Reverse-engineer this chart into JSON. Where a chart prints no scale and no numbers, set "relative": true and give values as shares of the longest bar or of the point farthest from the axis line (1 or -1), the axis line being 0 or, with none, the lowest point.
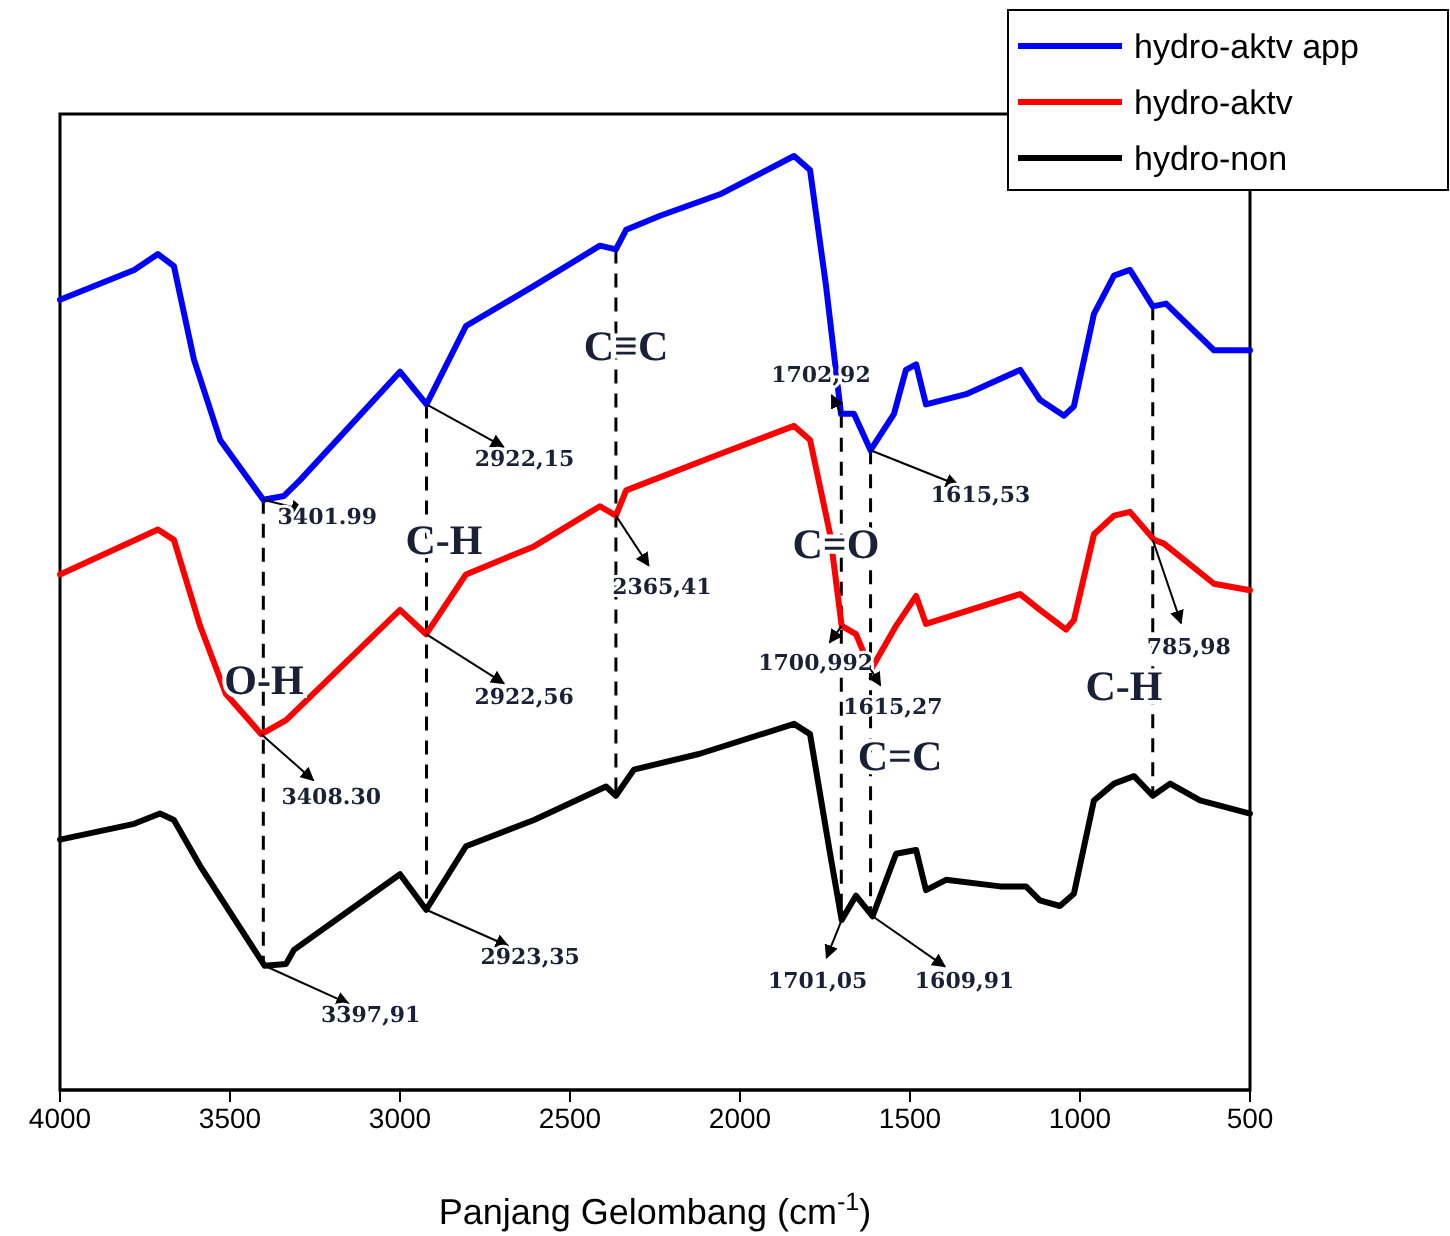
{
  "chart_data": {
    "type": "line",
    "relative": true,
    "xlabel": "Panjang Gelombang (cm$^{-1}$)",
    "xlim": [
      4000,
      500
    ],
    "xticks": [
      4000,
      3500,
      3000,
      2500,
      2000,
      1500,
      1000,
      500
    ],
    "legend": "top right",
    "line_style": "solid",
    "marker": "none",
    "series": [
      {
        "name": "hydro-aktv app",
        "color": "#0000ff",
        "x": [
          4000,
          3782,
          3712,
          3665,
          3606,
          3529,
          3402,
          3341,
          3294,
          3000,
          2922,
          2806,
          2606,
          2412,
          2365,
          2335,
          2235,
          2059,
          1841,
          1794,
          1747,
          1703,
          1665,
          1616,
          1547,
          1512,
          1482,
          1453,
          1335,
          1176,
          1118,
          1047,
          1018,
          959,
          900,
          853,
          786,
          747,
          606,
          500
        ],
        "values": [
          0.846,
          0.878,
          0.895,
          0.882,
          0.782,
          0.696,
          0.632,
          0.636,
          0.653,
          0.769,
          0.734,
          0.818,
          0.861,
          0.904,
          0.9,
          0.921,
          0.936,
          0.959,
          1.0,
          0.985,
          0.861,
          0.724,
          0.724,
          0.685,
          0.724,
          0.771,
          0.777,
          0.734,
          0.745,
          0.771,
          0.739,
          0.722,
          0.732,
          0.831,
          0.872,
          0.878,
          0.839,
          0.842,
          0.792,
          0.792
        ]
      },
      {
        "name": "hydro-aktv",
        "color": "#ff0000",
        "x": [
          4000,
          3712,
          3665,
          3588,
          3512,
          3408,
          3335,
          3000,
          2923,
          2806,
          2606,
          2412,
          2365,
          2335,
          2059,
          1841,
          1794,
          1735,
          1701,
          1659,
          1615,
          1541,
          1482,
          1453,
          1176,
          1118,
          1041,
          1018,
          959,
          900,
          853,
          782,
          753,
          606,
          500
        ],
        "values": [
          0.552,
          0.6,
          0.589,
          0.497,
          0.424,
          0.381,
          0.396,
          0.514,
          0.488,
          0.552,
          0.582,
          0.625,
          0.615,
          0.642,
          0.681,
          0.711,
          0.696,
          0.595,
          0.497,
          0.488,
          0.45,
          0.497,
          0.529,
          0.499,
          0.531,
          0.514,
          0.493,
          0.503,
          0.595,
          0.615,
          0.619,
          0.589,
          0.585,
          0.542,
          0.535
        ]
      },
      {
        "name": "hydro-non",
        "color": "#000000",
        "x": [
          4000,
          3782,
          3706,
          3665,
          3588,
          3398,
          3335,
          3312,
          3000,
          2923,
          2806,
          2606,
          2394,
          2365,
          2312,
          2118,
          1841,
          1794,
          1735,
          1701,
          1659,
          1610,
          1541,
          1482,
          1453,
          1394,
          1235,
          1159,
          1118,
          1059,
          1018,
          959,
          900,
          841,
          786,
          735,
          647,
          500
        ],
        "values": [
          0.268,
          0.285,
          0.296,
          0.289,
          0.24,
          0.133,
          0.135,
          0.15,
          0.231,
          0.193,
          0.261,
          0.289,
          0.325,
          0.315,
          0.343,
          0.36,
          0.392,
          0.381,
          0.253,
          0.182,
          0.208,
          0.186,
          0.253,
          0.257,
          0.214,
          0.225,
          0.218,
          0.218,
          0.203,
          0.197,
          0.21,
          0.31,
          0.328,
          0.336,
          0.315,
          0.328,
          0.31,
          0.296
        ]
      }
    ],
    "ref_lines": [
      {
        "axis": "x",
        "value": 3402,
        "line_style": "dashed"
      },
      {
        "axis": "x",
        "value": 2922,
        "line_style": "dashed"
      },
      {
        "axis": "x",
        "value": 2365,
        "line_style": "dashed"
      },
      {
        "axis": "x",
        "value": 1702,
        "line_style": "dashed"
      },
      {
        "axis": "x",
        "value": 1616,
        "line_style": "dashed"
      },
      {
        "axis": "x",
        "value": 786,
        "line_style": "dashed"
      }
    ],
    "annotations": [
      {
        "text": "3401.99",
        "x": 3402,
        "y": 0.632
      },
      {
        "text": "2922,15",
        "x": 2922,
        "y": 0.734
      },
      {
        "text": "2365,41",
        "x": 2365,
        "y": 0.615
      },
      {
        "text": "1702,92",
        "x": 1703,
        "y": 0.724
      },
      {
        "text": "1615,53",
        "x": 1616,
        "y": 0.685
      },
      {
        "text": "3408.30",
        "x": 3408,
        "y": 0.381
      },
      {
        "text": "2922,56",
        "x": 2923,
        "y": 0.488
      },
      {
        "text": "1700,992",
        "x": 1701,
        "y": 0.497
      },
      {
        "text": "1615,27",
        "x": 1615,
        "y": 0.45
      },
      {
        "text": "785,98",
        "x": 786,
        "y": 0.589
      },
      {
        "text": "3397,91",
        "x": 3398,
        "y": 0.133
      },
      {
        "text": "2923,35",
        "x": 2923,
        "y": 0.193
      },
      {
        "text": "1701,05",
        "x": 1701,
        "y": 0.182
      },
      {
        "text": "1609,91",
        "x": 1610,
        "y": 0.186
      },
      "O-H",
      "C-H",
      "C≡C",
      "C=O",
      "C=C",
      "C-H"
    ]
  }
}
